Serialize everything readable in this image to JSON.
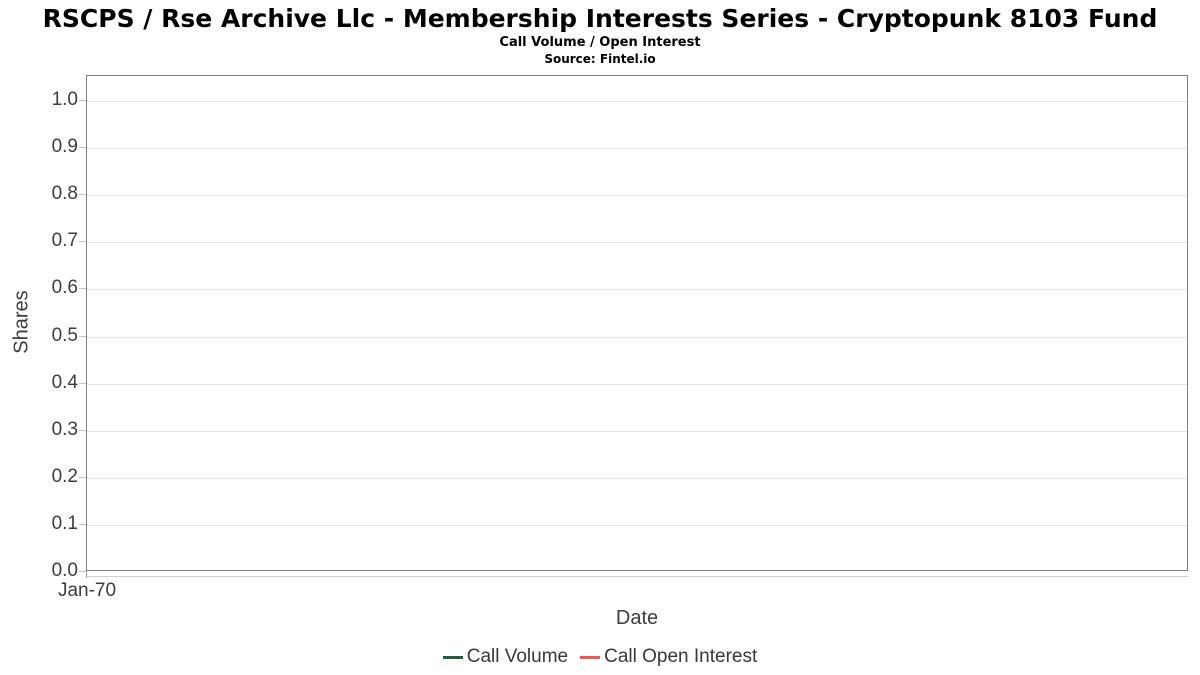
{
  "chart_data": {
    "type": "line",
    "suptitle": "RSCPS / Rse Archive Llc - Membership Interests Series - Cryptopunk 8103 Fund",
    "title": "Call Volume / Open Interest",
    "source": "Source: Fintel.io",
    "xlabel": "Date",
    "ylabel": "Shares",
    "ylim": [
      0.0,
      1.0
    ],
    "y_tick_labels": [
      "1.0",
      "0.9",
      "0.8",
      "0.7",
      "0.6",
      "0.5",
      "0.4",
      "0.3",
      "0.2",
      "0.1",
      "0.0"
    ],
    "x_tick_labels": [
      "Jan-70"
    ],
    "grid": "horizontal",
    "legend_position": "bottom-center",
    "series": [
      {
        "name": "Call Volume",
        "color": "#265c41",
        "x": [],
        "values": []
      },
      {
        "name": "Call Open Interest",
        "color": "#f9534f",
        "x": [],
        "values": []
      }
    ]
  },
  "colors": {
    "plot_border": "#7f7f7f",
    "gridline": "#e4e4e4",
    "tick": "#c4c4c4",
    "axis_text": "#3d3d3d",
    "title_text": "#000000"
  }
}
